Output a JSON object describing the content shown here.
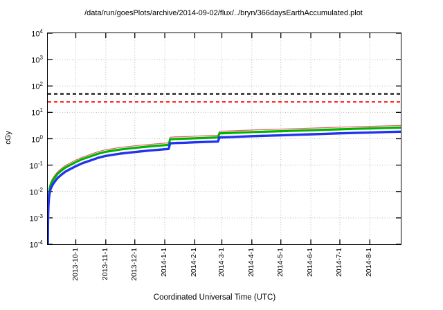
{
  "page": {
    "background": "#ffffff"
  },
  "chart_data": {
    "type": "line",
    "title": "/data/run/goesPlots/archive/2014-09-02/flux/../bryn/366daysEarthAccumulated.plot",
    "x_axis": {
      "label": "Coordinated Universal Time (UTC)",
      "span_days": 365,
      "ticks": [
        {
          "label": "2013-10-1",
          "day": 29
        },
        {
          "label": "2013-11-1",
          "day": 60
        },
        {
          "label": "2013-12-1",
          "day": 90
        },
        {
          "label": "2014-1-1",
          "day": 121
        },
        {
          "label": "2014-2-1",
          "day": 152
        },
        {
          "label": "2014-3-1",
          "day": 180
        },
        {
          "label": "2014-4-1",
          "day": 211
        },
        {
          "label": "2014-5-1",
          "day": 241
        },
        {
          "label": "2014-6-1",
          "day": 272
        },
        {
          "label": "2014-7-1",
          "day": 302
        },
        {
          "label": "2014-8-1",
          "day": 333
        }
      ]
    },
    "y_axis": {
      "label": "cGy",
      "scale": "log10",
      "tick_exponents": [
        4,
        3,
        2,
        1,
        0,
        -1,
        -2,
        -3,
        -4
      ],
      "ylim": [
        0.0001,
        10000
      ]
    },
    "grid": {
      "show": true,
      "color": "#b8b8b8",
      "style": "dotted"
    },
    "thresholds": [
      {
        "name": "dose-limit-upper",
        "value_cGy": 50,
        "color": "#000000",
        "style": "dashed",
        "width": 2
      },
      {
        "name": "dose-limit-lower",
        "value_cGy": 25,
        "color": "#ff0000",
        "style": "dashed",
        "width": 2
      }
    ],
    "series": [
      {
        "name": "accumulated-dose-red",
        "color": "#e06060",
        "stroke_width": 1.2,
        "points_day_cGy": [
          [
            0.05,
            0.0001
          ],
          [
            0.3,
            0.0014
          ],
          [
            0.7,
            0.0048
          ],
          [
            1.2,
            0.0096
          ],
          [
            2,
            0.0156
          ],
          [
            3,
            0.022
          ],
          [
            5,
            0.031
          ],
          [
            7,
            0.04
          ],
          [
            10,
            0.055
          ],
          [
            14,
            0.074
          ],
          [
            18,
            0.096
          ],
          [
            23,
            0.12
          ],
          [
            29,
            0.156
          ],
          [
            36,
            0.2
          ],
          [
            45,
            0.264
          ],
          [
            52,
            0.324
          ],
          [
            60,
            0.384
          ],
          [
            75,
            0.468
          ],
          [
            90,
            0.54
          ],
          [
            105,
            0.61
          ],
          [
            121,
            0.68
          ],
          [
            125,
            0.7
          ],
          [
            126.5,
            1.14
          ],
          [
            132,
            1.18
          ],
          [
            140,
            1.2
          ],
          [
            152,
            1.25
          ],
          [
            164,
            1.3
          ],
          [
            176,
            1.34
          ],
          [
            177.5,
            1.92
          ],
          [
            190,
            1.99
          ],
          [
            200,
            2.06
          ],
          [
            211,
            2.14
          ],
          [
            226,
            2.23
          ],
          [
            241,
            2.32
          ],
          [
            256,
            2.41
          ],
          [
            272,
            2.52
          ],
          [
            287,
            2.63
          ],
          [
            302,
            2.74
          ],
          [
            317,
            2.84
          ],
          [
            333,
            2.95
          ],
          [
            349,
            3.07
          ],
          [
            365,
            3.18
          ]
        ]
      },
      {
        "name": "accumulated-dose-green",
        "color": "#00b400",
        "stroke_width": 3.2,
        "points_day_cGy": [
          [
            0.05,
            0.0001
          ],
          [
            0.3,
            0.0012
          ],
          [
            0.7,
            0.004
          ],
          [
            1.2,
            0.008
          ],
          [
            2,
            0.013
          ],
          [
            3,
            0.018
          ],
          [
            5,
            0.026
          ],
          [
            7,
            0.033
          ],
          [
            10,
            0.046
          ],
          [
            14,
            0.062
          ],
          [
            18,
            0.08
          ],
          [
            23,
            0.1
          ],
          [
            29,
            0.13
          ],
          [
            36,
            0.17
          ],
          [
            45,
            0.22
          ],
          [
            52,
            0.27
          ],
          [
            60,
            0.32
          ],
          [
            75,
            0.39
          ],
          [
            90,
            0.45
          ],
          [
            105,
            0.51
          ],
          [
            121,
            0.57
          ],
          [
            125,
            0.585
          ],
          [
            126.5,
            0.95
          ],
          [
            132,
            0.98
          ],
          [
            140,
            1.0
          ],
          [
            152,
            1.04
          ],
          [
            164,
            1.08
          ],
          [
            176,
            1.12
          ],
          [
            177.5,
            1.6
          ],
          [
            190,
            1.66
          ],
          [
            200,
            1.72
          ],
          [
            211,
            1.78
          ],
          [
            226,
            1.86
          ],
          [
            241,
            1.93
          ],
          [
            256,
            2.01
          ],
          [
            272,
            2.1
          ],
          [
            287,
            2.19
          ],
          [
            302,
            2.28
          ],
          [
            317,
            2.37
          ],
          [
            333,
            2.46
          ],
          [
            349,
            2.56
          ],
          [
            365,
            2.65
          ]
        ]
      },
      {
        "name": "accumulated-dose-blue",
        "color": "#2233ee",
        "stroke_width": 3.4,
        "points_day_cGy": [
          [
            0.05,
            0.0001
          ],
          [
            0.3,
            0.0009
          ],
          [
            0.7,
            0.0028
          ],
          [
            1.2,
            0.0056
          ],
          [
            2,
            0.009
          ],
          [
            3,
            0.0126
          ],
          [
            5,
            0.018
          ],
          [
            7,
            0.023
          ],
          [
            10,
            0.032
          ],
          [
            14,
            0.043
          ],
          [
            18,
            0.056
          ],
          [
            23,
            0.07
          ],
          [
            29,
            0.091
          ],
          [
            36,
            0.119
          ],
          [
            45,
            0.154
          ],
          [
            52,
            0.189
          ],
          [
            60,
            0.224
          ],
          [
            75,
            0.273
          ],
          [
            90,
            0.315
          ],
          [
            105,
            0.357
          ],
          [
            121,
            0.4
          ],
          [
            125,
            0.41
          ],
          [
            126.5,
            0.67
          ],
          [
            132,
            0.69
          ],
          [
            140,
            0.7
          ],
          [
            152,
            0.73
          ],
          [
            164,
            0.76
          ],
          [
            176,
            0.78
          ],
          [
            177.5,
            1.12
          ],
          [
            190,
            1.16
          ],
          [
            200,
            1.2
          ],
          [
            211,
            1.25
          ],
          [
            226,
            1.3
          ],
          [
            241,
            1.35
          ],
          [
            256,
            1.41
          ],
          [
            272,
            1.47
          ],
          [
            287,
            1.53
          ],
          [
            302,
            1.6
          ],
          [
            317,
            1.66
          ],
          [
            333,
            1.72
          ],
          [
            349,
            1.79
          ],
          [
            365,
            1.85
          ]
        ]
      }
    ]
  }
}
